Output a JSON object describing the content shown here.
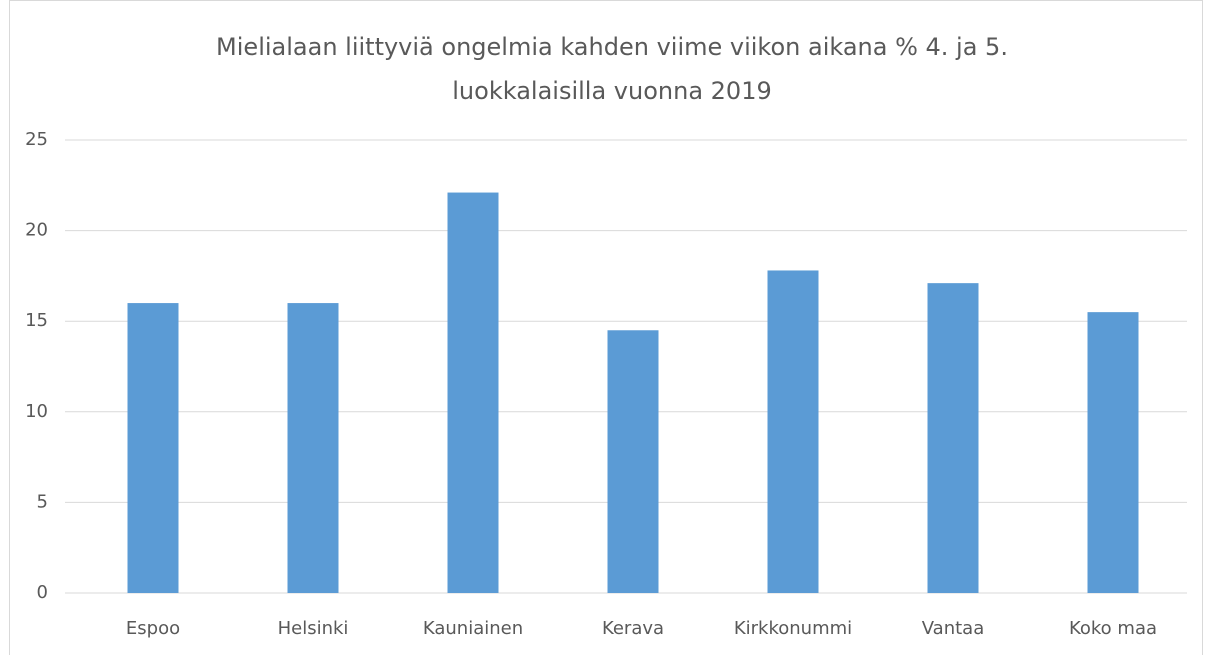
{
  "chart_data": {
    "type": "bar",
    "title": [
      "Mielialaan liittyviä ongelmia kahden viime viikon aikana % 4. ja 5.",
      "luokkalaisilla vuonna 2019"
    ],
    "categories": [
      "Espoo",
      "Helsinki",
      "Kauniainen",
      "Kerava",
      "Kirkkonummi",
      "Vantaa",
      "Koko maa"
    ],
    "values": [
      16,
      16,
      22.1,
      14.5,
      17.8,
      17.1,
      15.5
    ],
    "color": "#5b9bd5",
    "ylim": [
      0,
      25
    ],
    "yticks": [
      0,
      5,
      10,
      15,
      20,
      25
    ],
    "grid": true
  }
}
